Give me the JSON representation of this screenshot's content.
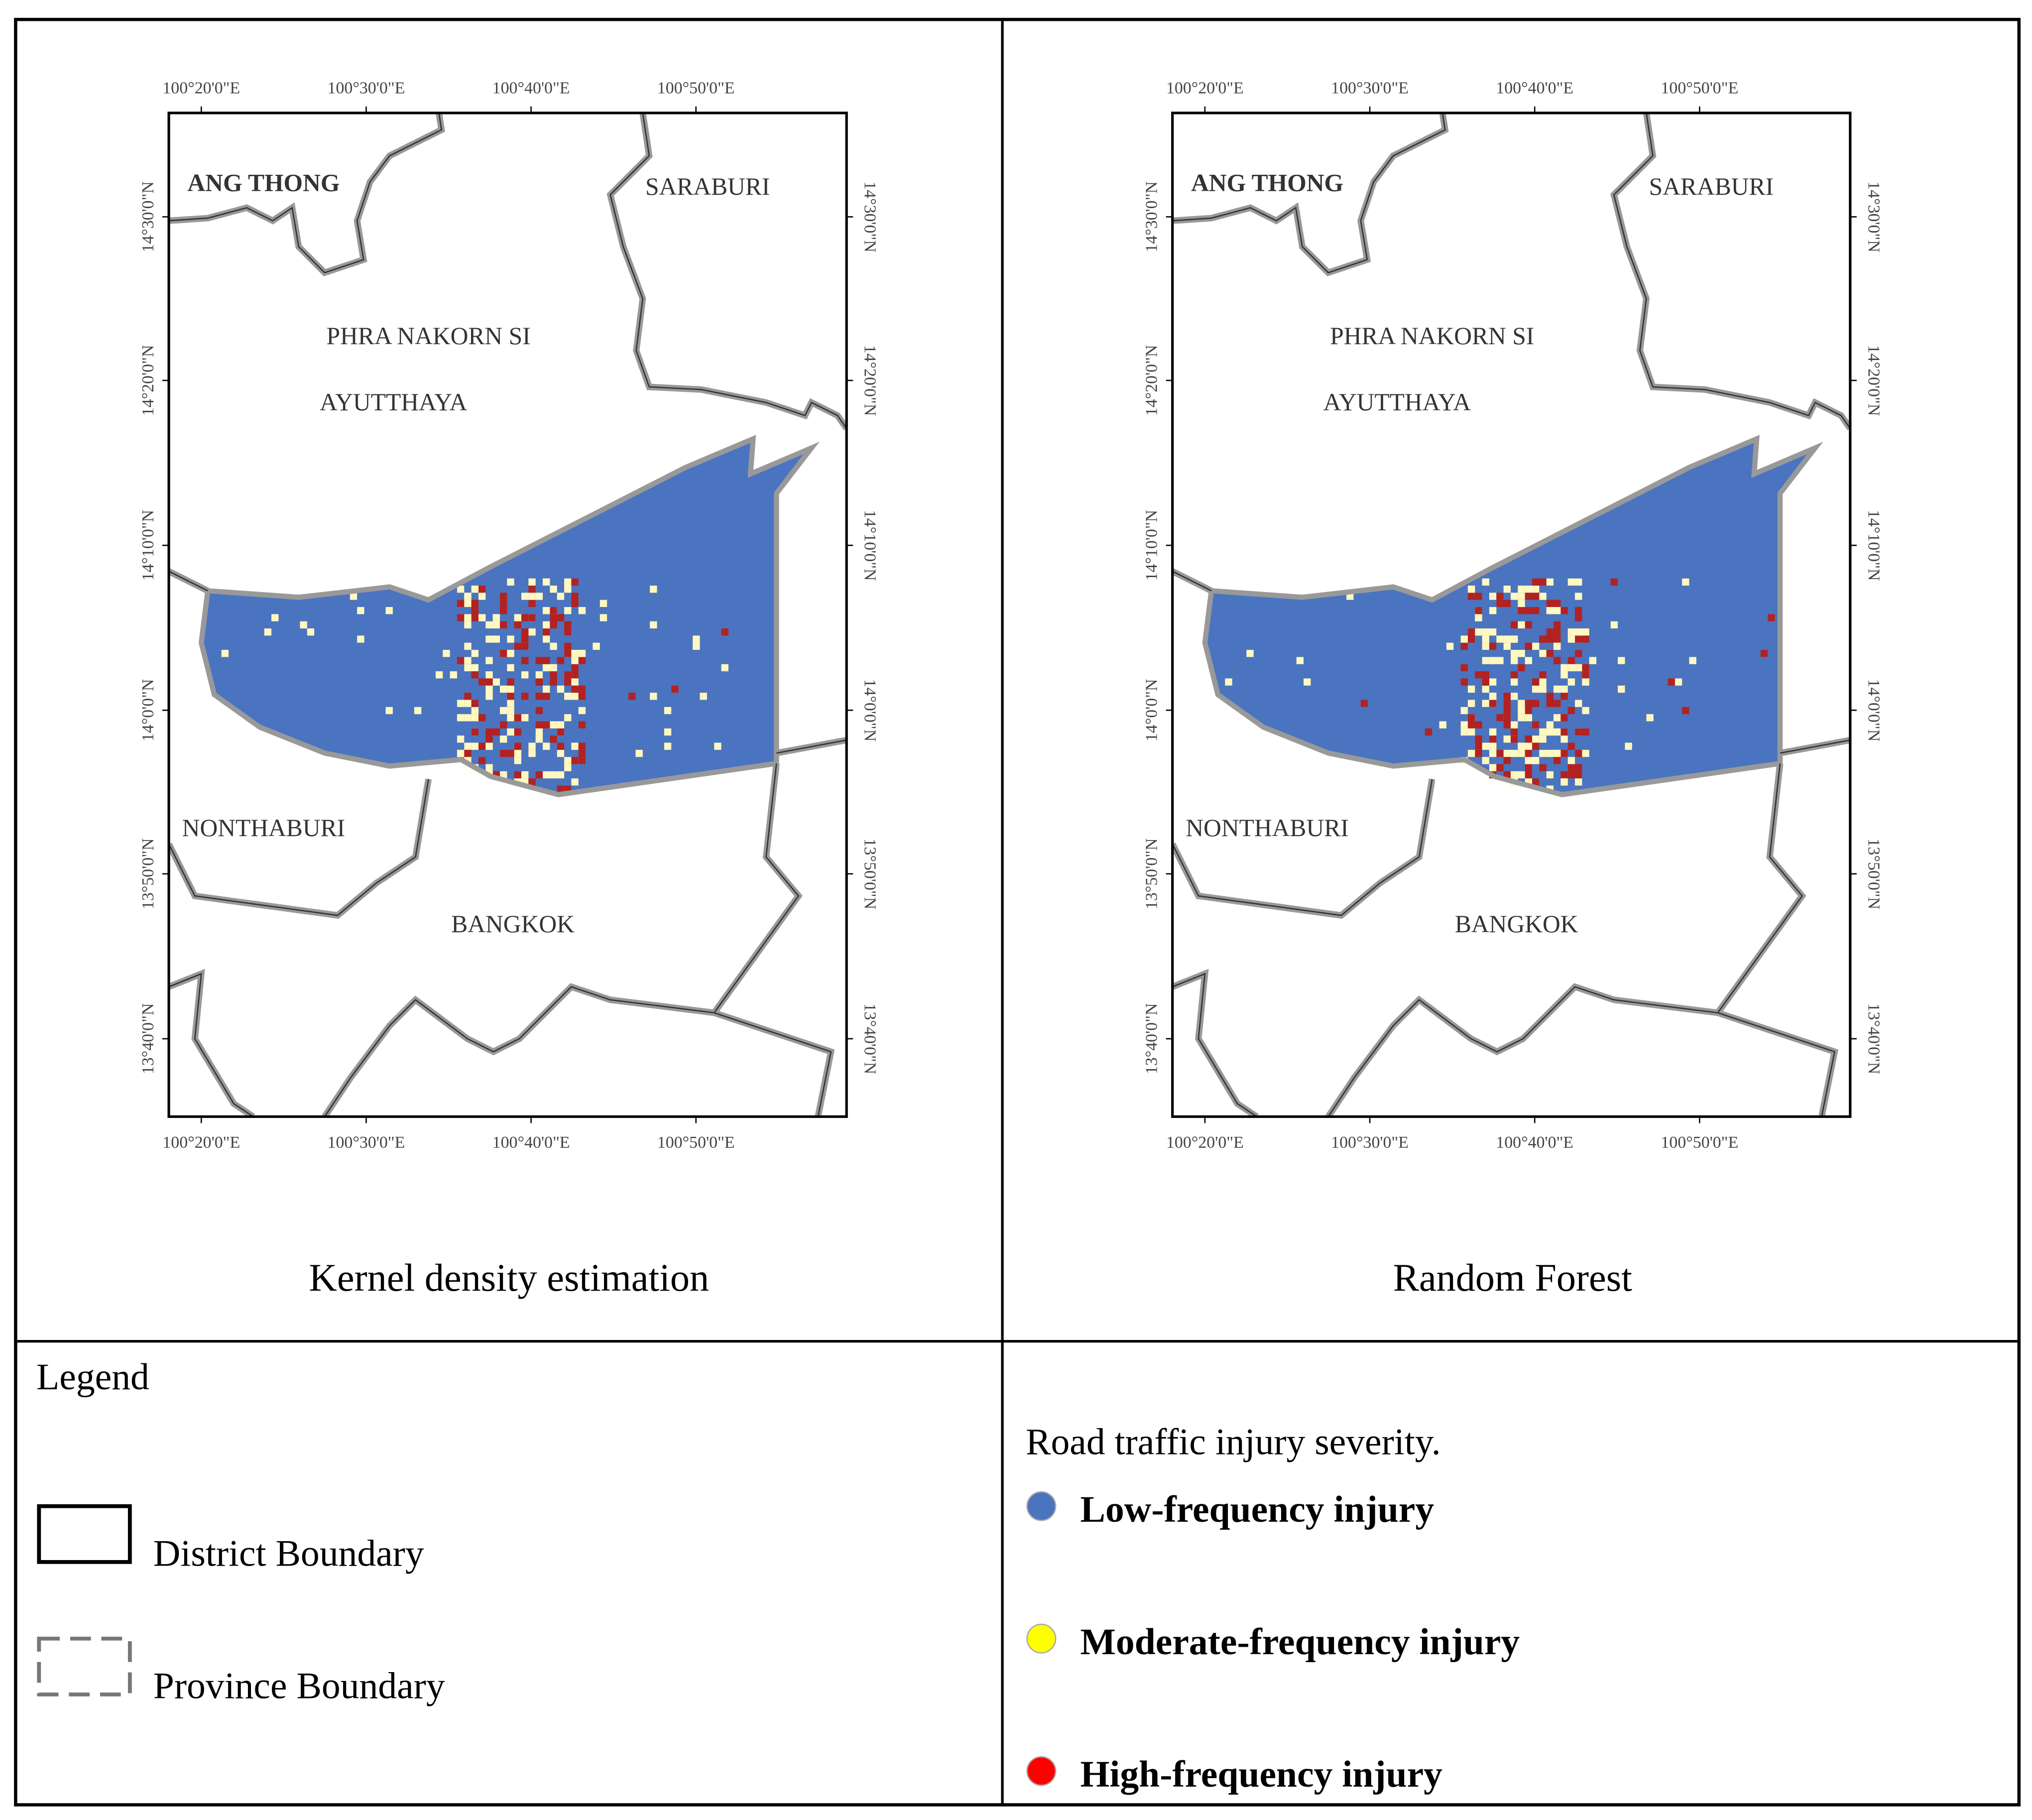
{
  "panels": [
    {
      "title": "Kernel density estimation",
      "lon_ticks": [
        "100°20'0\"E",
        "100°30'0\"E",
        "100°40'0\"E",
        "100°50'0\"E"
      ],
      "lat_ticks": [
        "14°30'0\"N",
        "14°20'0\"N",
        "14°10'0\"N",
        "14°0'0\"N",
        "13°50'0\"N",
        "13°40'0\"N"
      ],
      "regions": [
        "ANG THONG",
        "SARABURI",
        "PHRA NAKORN SI",
        "AYUTTHAYA",
        "NONTHABURI",
        "BANGKOK"
      ]
    },
    {
      "title": "Random Forest",
      "lon_ticks": [
        "100°20'0\"E",
        "100°30'0\"E",
        "100°40'0\"E",
        "100°50'0\"E"
      ],
      "lat_ticks": [
        "14°30'0\"N",
        "14°20'0\"N",
        "14°10'0\"N",
        "14°0'0\"N",
        "13°50'0\"N",
        "13°40'0\"N"
      ],
      "regions": [
        "ANG THONG",
        "SARABURI",
        "PHRA NAKORN SI",
        "AYUTTHAYA",
        "NONTHABURI",
        "BANGKOK"
      ]
    }
  ],
  "legend": {
    "title": "Legend",
    "boundaries": [
      "District Boundary",
      "Province Boundary"
    ],
    "severity_title": "Road traffic injury severity.",
    "classes": [
      {
        "label": "Low-frequency injury",
        "color": "#4a74bf"
      },
      {
        "label": "Moderate-frequency injury",
        "color": "#ffff00"
      },
      {
        "label": "High-frequency injury",
        "color": "#ff0000"
      }
    ]
  }
}
